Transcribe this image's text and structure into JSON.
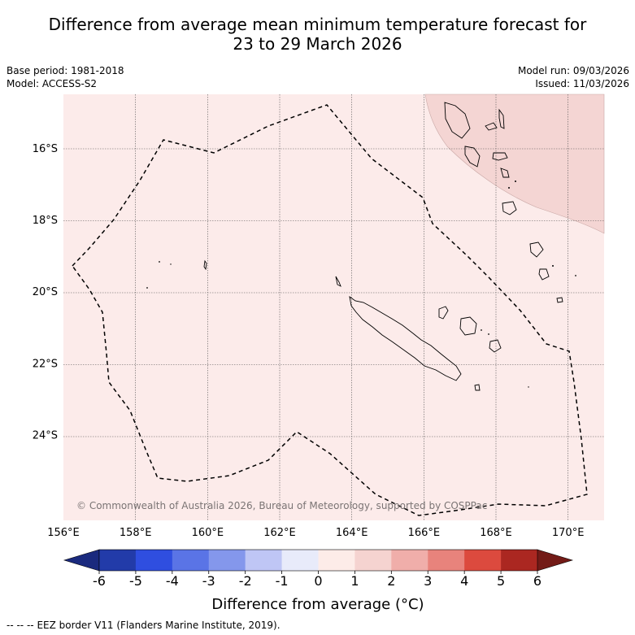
{
  "title": {
    "line1": "Difference from average mean minimum temperature forecast for",
    "line2": "23 to 29 March 2026"
  },
  "meta": {
    "base_period": "Base period: 1981-2018",
    "model": "Model: ACCESS-S2",
    "model_run": "Model run: 09/03/2026",
    "issued": "Issued: 11/03/2026"
  },
  "map": {
    "lon_range": [
      156,
      171
    ],
    "lat_range": [
      -26.4,
      -14.5
    ],
    "lon_ticks": [
      "156°E",
      "158°E",
      "160°E",
      "162°E",
      "164°E",
      "166°E",
      "168°E",
      "170°E"
    ],
    "lat_ticks": [
      "16°S",
      "18°S",
      "20°S",
      "22°S",
      "24°S"
    ],
    "background_color": "#fcebea",
    "anomaly_region_color": "#f4d5d3",
    "copyright": "© Commonwealth of Australia 2026, Bureau of Meteorology, supported by COSPPac"
  },
  "colorbar": {
    "ticks": [
      "-6",
      "-5",
      "-4",
      "-3",
      "-2",
      "-1",
      "0",
      "1",
      "2",
      "3",
      "4",
      "5",
      "6"
    ],
    "colors": [
      "#223ba9",
      "#2f4ee0",
      "#5a74e6",
      "#8497ec",
      "#bfc6f5",
      "#e8ebfa",
      "#fdece8",
      "#f5d3d0",
      "#f0aeaa",
      "#e8837c",
      "#dc4a3e",
      "#ab2721"
    ],
    "low_extend_color": "#1a2a7e",
    "high_extend_color": "#731b17",
    "title": "Difference from average (°C)"
  },
  "footer": {
    "legend_symbol": "-- -- --",
    "text": "EEZ border V11 (Flanders Marine Institute, 2019)."
  }
}
